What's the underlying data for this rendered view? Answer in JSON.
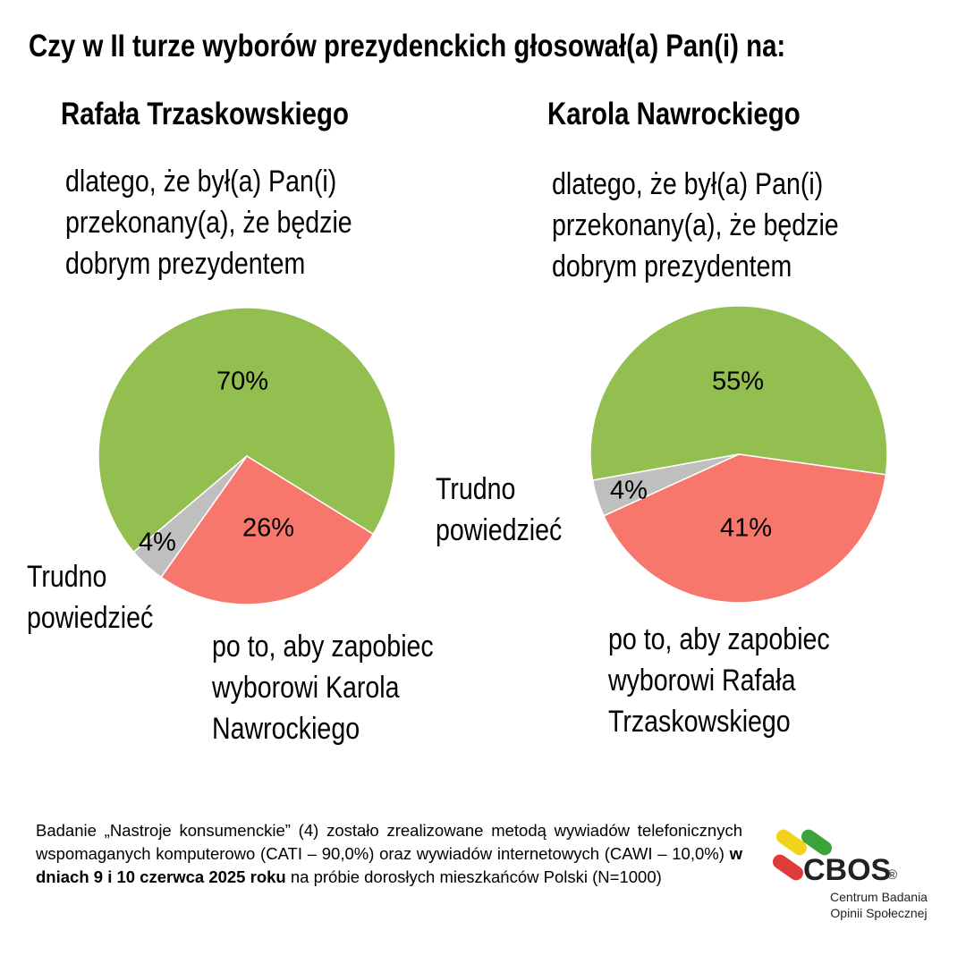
{
  "title": "Czy w II turze wyborów prezydenckich głosował(a) Pan(i) na:",
  "chart_data": [
    {
      "type": "pie",
      "title": "Rafała Trzaskowskiego",
      "categories": [
        "dlatego, że był(a) Pan(i) przekonany(a), że będzie dobrym prezydentem",
        "po to, aby zapobiec wyborowi Karola Nawrockiego",
        "Trudno powiedzieć"
      ],
      "values": [
        70,
        26,
        4
      ],
      "value_labels": [
        "70%",
        "26%",
        "4%"
      ],
      "colors": [
        "#92bf50",
        "#f8776c",
        "#bfbfbf"
      ]
    },
    {
      "type": "pie",
      "title": "Karola Nawrockiego",
      "categories": [
        "dlatego, że był(a) Pan(i) przekonany(a), że będzie dobrym prezydentem",
        "po to, aby zapobiec wyborowi Rafała Trzaskowskiego",
        "Trudno powiedzieć"
      ],
      "values": [
        55,
        41,
        4
      ],
      "value_labels": [
        "55%",
        "41%",
        "4%"
      ],
      "colors": [
        "#92bf50",
        "#f8776c",
        "#bfbfbf"
      ]
    }
  ],
  "footer": [
    "Badanie „Nastroje konsumenckie” (4) zostało zrealizowane metodą wywiadów telefonicznych wspomaganych komputerowo (CATI – 90,0%) oraz wywiadów internetowych (CAWI – 10,0%)",
    "w dniach 9 i 10 czerwca 2025 roku",
    "na próbie dorosłych mieszkańców Polski (N=1000)"
  ],
  "logo": {
    "name": "CBOS",
    "mark": "®",
    "subtitle": "Centrum Badania Opinii Społecznej"
  }
}
